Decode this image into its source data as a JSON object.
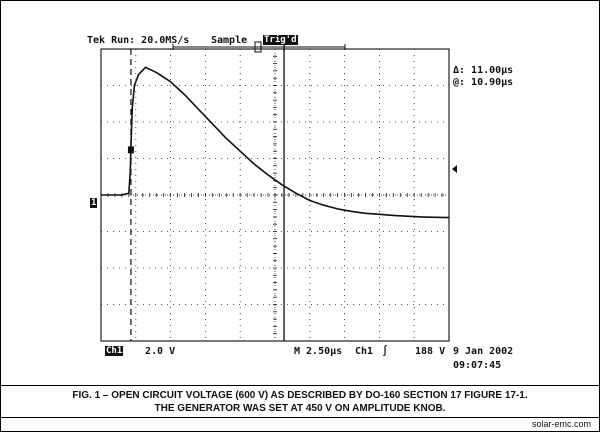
{
  "header": {
    "run_status": "Tek Run: 20.0MS/s",
    "acquire_mode": "Sample",
    "trigger_badge": "Trig'd"
  },
  "cursor_readout": {
    "delta": "Δ: 11.00μs",
    "at": "@: 10.90μs"
  },
  "footer": {
    "channel_badge": "Ch1",
    "volts_per_div": "2.0 V",
    "timebase": "M 2.50μs",
    "trigger_source": "Ch1",
    "trigger_slope_symbol": "∫",
    "trigger_level": "188 V",
    "date": "9 Jan 2002",
    "time": "09:07:45"
  },
  "markers": {
    "ground_ref": "1"
  },
  "caption": {
    "line1": "FIG. 1 – OPEN CIRCUIT VOLTAGE (600 V) AS DESCRIBED BY DO-160 SECTION 17 FIGURE 17-1.",
    "line2": "THE GENERATOR WAS SET AT 450 V ON AMPLITUDE KNOB."
  },
  "credit": "solar-emc.com",
  "colors": {
    "trace": "#111111",
    "grid": "#222222",
    "background": "#ffffff"
  },
  "chart_data": {
    "type": "line",
    "x_divisions": 10,
    "y_divisions": 8,
    "time_per_div_us": 2.5,
    "volts_per_div_scope": 2.0,
    "ground_level_div": 0,
    "ylim_div": [
      -4,
      4
    ],
    "xlim_us": [
      0,
      25
    ],
    "grid": true,
    "cursors_us": [
      2.15,
      13.15
    ],
    "series": [
      {
        "x_us": [
          0,
          1.5,
          2.0,
          2.1,
          2.15,
          2.25,
          2.4,
          2.7,
          3.2,
          4.0,
          5.0,
          6.0,
          7.0,
          8.0,
          9.0,
          10.0,
          11.0,
          12.0,
          13.0,
          14.0,
          15.0,
          16.0,
          17.0,
          18.0,
          19.0,
          20.0,
          21.0,
          22.0,
          23.0,
          24.0,
          25.0
        ],
        "y_div": [
          0,
          0,
          0.05,
          0.6,
          1.3,
          2.4,
          3.0,
          3.3,
          3.5,
          3.35,
          3.1,
          2.75,
          2.35,
          1.95,
          1.55,
          1.2,
          0.85,
          0.55,
          0.28,
          0.05,
          -0.15,
          -0.28,
          -0.38,
          -0.45,
          -0.5,
          -0.53,
          -0.56,
          -0.58,
          -0.6,
          -0.61,
          -0.62
        ]
      }
    ]
  }
}
